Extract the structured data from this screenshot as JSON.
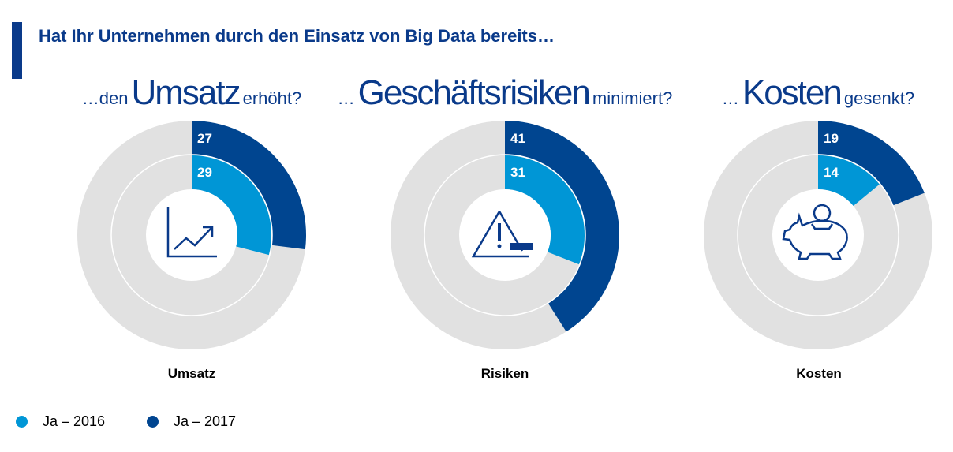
{
  "title": "Hat Ihr Unternehmen durch den Einsatz von Big Data bereits…",
  "colors": {
    "y2016": "#0096d6",
    "y2017": "#004590",
    "rest": "#e1e1e1"
  },
  "chart_data": [
    {
      "type": "donut",
      "subtitle_pre": "…den",
      "subtitle_big": "Umsatz",
      "subtitle_post": "erhöht?",
      "label": "Umsatz",
      "icon": "line-chart-icon",
      "series": [
        {
          "name": "Ja – 2016",
          "value": 29
        },
        {
          "name": "Ja – 2017",
          "value": 27
        }
      ]
    },
    {
      "type": "donut",
      "subtitle_pre": "…",
      "subtitle_big": "Geschäftsrisiken",
      "subtitle_post": "minimiert?",
      "label": "Risiken",
      "icon": "warning-icon",
      "series": [
        {
          "name": "Ja – 2016",
          "value": 31
        },
        {
          "name": "Ja – 2017",
          "value": 41
        }
      ]
    },
    {
      "type": "donut",
      "subtitle_pre": "…",
      "subtitle_big": "Kosten",
      "subtitle_post": "gesenkt?",
      "label": "Kosten",
      "icon": "piggy-bank-icon",
      "series": [
        {
          "name": "Ja – 2016",
          "value": 14
        },
        {
          "name": "Ja – 2017",
          "value": 19
        }
      ]
    }
  ],
  "legend": [
    "Ja – 2016",
    "Ja – 2017"
  ]
}
